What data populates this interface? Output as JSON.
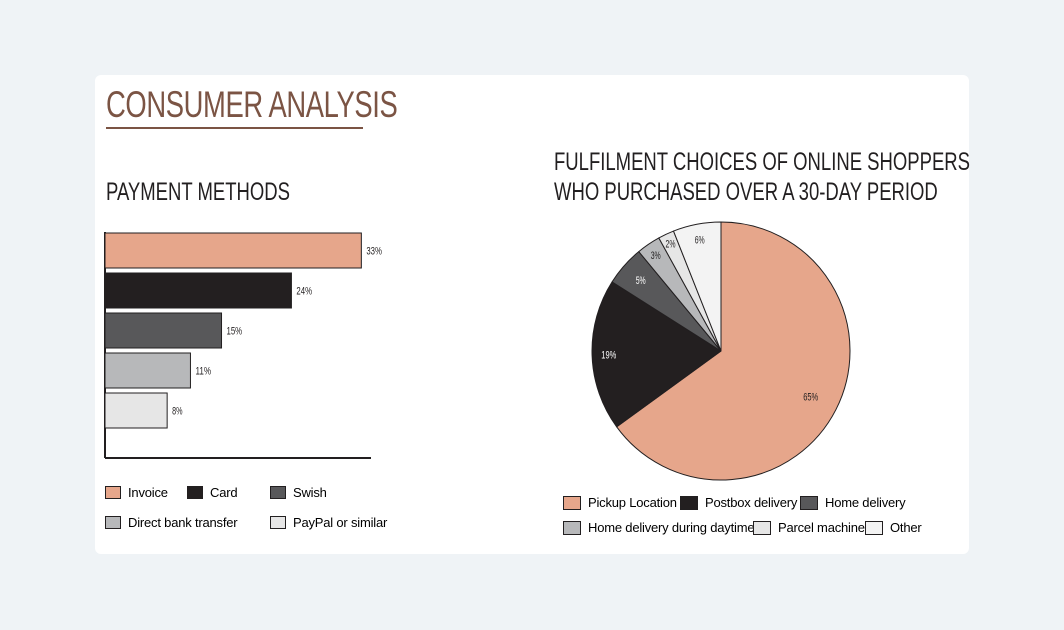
{
  "header": {
    "title": "CONSUMER ANALYSIS"
  },
  "colors": {
    "accent": "#7b5444",
    "pickup_invoice": "#e6a68b",
    "black": "#231f20",
    "dark_gray": "#58585a",
    "mid_gray": "#b7b8ba",
    "light_gray": "#e6e6e6",
    "other": "#f3f3f3"
  },
  "chart_data": [
    {
      "type": "bar",
      "orientation": "horizontal",
      "title": "PAYMENT METHODS",
      "categories": [
        "Invoice",
        "Card",
        "Swish",
        "Direct bank transfer",
        "PayPal or similar"
      ],
      "values": [
        33,
        24,
        15,
        11,
        8
      ],
      "data_labels": [
        "33%",
        "24%",
        "15%",
        "11%",
        "8%"
      ],
      "colors": [
        "#e6a68b",
        "#231f20",
        "#58585a",
        "#b7b8ba",
        "#e6e6e6"
      ],
      "xlim": [
        0,
        34.5
      ],
      "legend_position": "bottom"
    },
    {
      "type": "pie",
      "title_lines": [
        "FULFILMENT CHOICES OF ONLINE SHOPPERS",
        "WHO PURCHASED OVER A 30-DAY PERIOD"
      ],
      "categories": [
        "Pickup Location",
        "Postbox delivery",
        "Home delivery",
        "Home delivery during daytime",
        "Parcel machine",
        "Other"
      ],
      "values": [
        65,
        19,
        5,
        3,
        2,
        6
      ],
      "data_labels": [
        "65%",
        "19%",
        "5%",
        "3%",
        "2%",
        "6%"
      ],
      "colors": [
        "#e6a68b",
        "#231f20",
        "#58585a",
        "#b7b8ba",
        "#e6e6e6",
        "#f3f3f3"
      ],
      "label_colors": [
        "#221f20",
        "#ffffff",
        "#ffffff",
        "#221f20",
        "#221f20",
        "#221f20"
      ],
      "legend_position": "bottom"
    }
  ]
}
